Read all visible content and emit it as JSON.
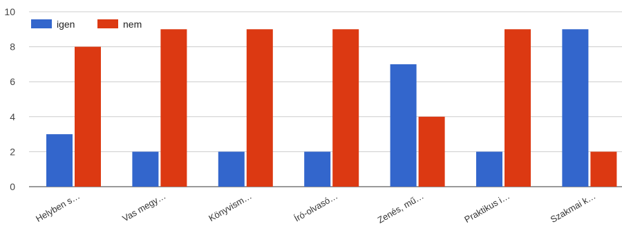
{
  "chart_data": {
    "type": "bar",
    "categories": [
      "Helyben s…",
      "Vas megy…",
      "Könyvism…",
      "Író-olvasó…",
      "Zenés, mű…",
      "Praktikus i…",
      "Szakmai k…"
    ],
    "series": [
      {
        "name": "igen",
        "color": "#3366cc",
        "values": [
          3,
          2,
          2,
          2,
          7,
          2,
          9
        ]
      },
      {
        "name": "nem",
        "color": "#dc3912",
        "values": [
          8,
          9,
          9,
          9,
          4,
          9,
          2
        ]
      }
    ],
    "ylim": [
      0,
      10
    ],
    "yticks": [
      0,
      2,
      4,
      6,
      8,
      10
    ],
    "grid": true,
    "legend_position": "top-left"
  }
}
